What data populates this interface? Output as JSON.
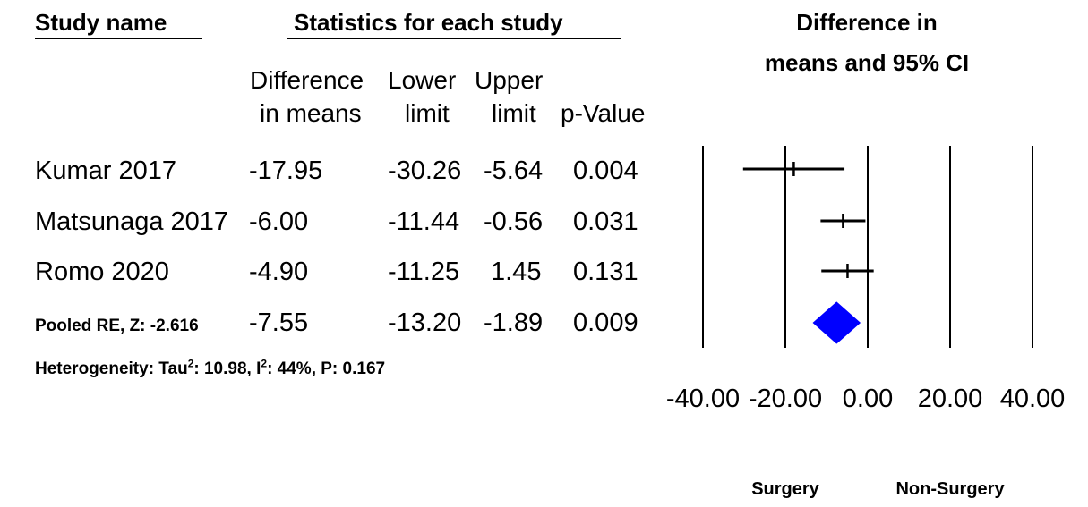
{
  "headers": {
    "study_name": "Study name",
    "statistics": "Statistics for each study",
    "plot_title_line1": "Difference in",
    "plot_title_line2": "means and 95% CI"
  },
  "columns": {
    "diff_line1": "Difference",
    "diff_line2": "in means",
    "lower_line1": "Lower",
    "lower_line2": "limit",
    "upper_line1": "Upper",
    "upper_line2": "limit",
    "p_line2": "p-Value"
  },
  "rows": [
    {
      "study": "Kumar 2017",
      "diff": "-17.95",
      "lower": "-30.26",
      "upper": "-5.64",
      "p": "0.004"
    },
    {
      "study": "Matsunaga 2017",
      "diff": "-6.00",
      "lower": "-11.44",
      "upper": "-0.56",
      "p": "0.031"
    },
    {
      "study": "Romo 2020",
      "diff": "-4.90",
      "lower": "-11.25",
      "upper": "1.45",
      "p": "0.131"
    }
  ],
  "pooled": {
    "study": "Pooled RE, Z: -2.616",
    "diff": "-7.55",
    "lower": "-13.20",
    "upper": "-1.89",
    "p": "0.009"
  },
  "heterogeneity": {
    "prefix": "Heterogeneity: Tau",
    "tau_sup": "2",
    "tau_value": ": 10.98, I",
    "i_sup": "2",
    "rest": ": 44%, P: 0.167"
  },
  "chart_data": {
    "type": "forest",
    "x_ticks": [
      "-40.00",
      "-20.00",
      "0.00",
      "20.00",
      "40.00"
    ],
    "xlim": [
      -40,
      40
    ],
    "xlabel_left": "Surgery",
    "xlabel_right": "Non-Surgery",
    "studies": [
      {
        "name": "Kumar 2017",
        "estimate": -17.95,
        "lower": -30.26,
        "upper": -5.64
      },
      {
        "name": "Matsunaga 2017",
        "estimate": -6.0,
        "lower": -11.44,
        "upper": -0.56
      },
      {
        "name": "Romo 2020",
        "estimate": -4.9,
        "lower": -11.25,
        "upper": 1.45
      }
    ],
    "pooled": {
      "estimate": -7.55,
      "lower": -13.2,
      "upper": -1.89
    },
    "pooled_color": "#0000ff"
  }
}
